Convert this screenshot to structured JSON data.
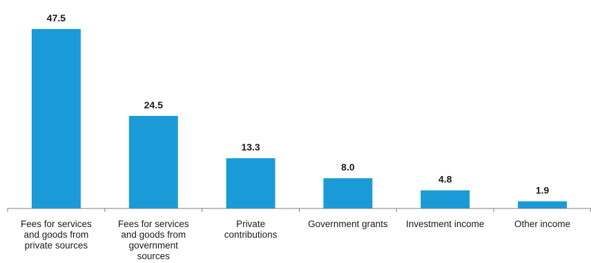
{
  "chart_data": {
    "type": "bar",
    "categories": [
      [
        "Fees for services",
        "and goods from",
        "private sources"
      ],
      [
        "Fees for services",
        "and goods from",
        "government",
        "sources"
      ],
      [
        "Private",
        "contributions"
      ],
      [
        "Government grants"
      ],
      [
        "Investment income"
      ],
      [
        "Other income"
      ]
    ],
    "values": [
      47.5,
      24.5,
      13.3,
      8.0,
      4.8,
      1.9
    ],
    "value_labels": [
      "47.5",
      "24.5",
      "13.3",
      "8.0",
      "4.8",
      "1.9"
    ],
    "title": "",
    "xlabel": "",
    "ylabel": "",
    "ylim": [
      0,
      47.5
    ],
    "grid": false,
    "bar_color": "#1a9bd7",
    "axis_color": "#7f7f7f"
  }
}
